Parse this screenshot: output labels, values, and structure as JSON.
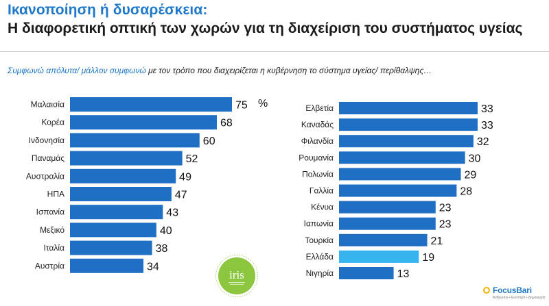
{
  "header": {
    "title_line1": "Ικανοποίηση ή δυσαρέσκεια:",
    "title_line2": "Η διαφορετική οπτική των χωρών για τη διαχείριση του συστήματος υγείας",
    "subtitle_highlight": "Συμφωνώ απόλυτα/ μάλλον συμφωνώ",
    "subtitle_rest": " με τον τρόπο που διαχειρίζεται η κυβέρνηση το σύστημα υγείας/ περίθαλψης…"
  },
  "colors": {
    "bar": "#1f6fc5",
    "bar_highlight": "#35b4ee",
    "title_blue": "#1f78c8"
  },
  "chart_data": [
    {
      "type": "bar",
      "orientation": "horizontal",
      "unit": "%",
      "categories": [
        "Μαλαισία",
        "Κορέα",
        "Ινδονησία",
        "Παναμάς",
        "Αυστραλία",
        "ΗΠΑ",
        "Ισπανία",
        "Μεξικό",
        "Ιταλία",
        "Αυστρία"
      ],
      "values": [
        75,
        68,
        60,
        52,
        49,
        47,
        43,
        40,
        38,
        34
      ],
      "xlim": [
        0,
        75
      ],
      "grid": false
    },
    {
      "type": "bar",
      "orientation": "horizontal",
      "categories": [
        "Ελβετία",
        "Καναδάς",
        "Φιλανδία",
        "Ρουμανία",
        "Πολωνία",
        "Γαλλία",
        "Κένυα",
        "Ιαπωνία",
        "Τουρκία",
        "Ελλάδα",
        "Νιγηρία"
      ],
      "values": [
        33,
        33,
        32,
        30,
        29,
        28,
        23,
        23,
        21,
        19,
        13
      ],
      "highlight": "Ελλάδα",
      "xlim": [
        0,
        33
      ],
      "grid": false
    }
  ],
  "logos": {
    "iris": "iris",
    "focus_brand": "FocusBari",
    "focus_tagline": "Άνθρωποι • Ευστοχία • Δημιουργία"
  }
}
